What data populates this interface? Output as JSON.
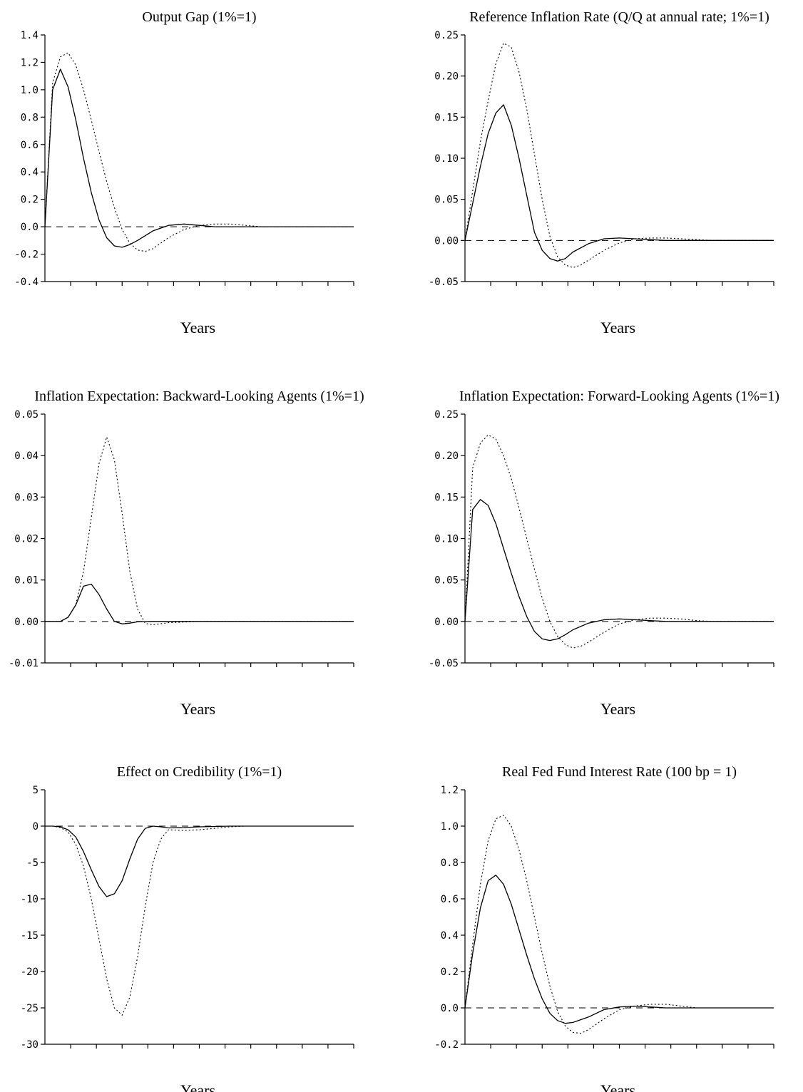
{
  "chart_data": [
    {
      "type": "line",
      "title": "Output Gap (1%=1)",
      "xlabel": "Years",
      "ylabel": "",
      "ylim": [
        -0.4,
        1.4
      ],
      "yticks": [
        "-0.4",
        "-0.2",
        "0.0",
        "0.2",
        "0.4",
        "0.6",
        "0.8",
        "1.0",
        "1.2",
        "1.4"
      ],
      "xlim": [
        0,
        40
      ],
      "x_ticks_count": 12,
      "zero_line": true,
      "series": [
        {
          "style": "solid",
          "x": [
            0,
            1,
            2,
            3,
            4,
            5,
            6,
            7,
            8,
            9,
            10,
            11,
            12,
            14,
            16,
            18,
            20,
            22,
            24,
            26,
            28,
            30,
            32,
            34,
            36,
            38,
            40
          ],
          "y": [
            0.0,
            1.0,
            1.15,
            1.02,
            0.78,
            0.5,
            0.25,
            0.05,
            -0.08,
            -0.14,
            -0.15,
            -0.13,
            -0.1,
            -0.03,
            0.01,
            0.02,
            0.01,
            0.0,
            0.0,
            0.0,
            0.0,
            0.0,
            0.0,
            0.0,
            0.0,
            0.0,
            0.0
          ]
        },
        {
          "style": "dotted",
          "x": [
            0,
            1,
            2,
            3,
            4,
            5,
            6,
            7,
            8,
            9,
            10,
            11,
            12,
            13,
            14,
            15,
            16,
            18,
            20,
            22,
            24,
            26,
            28,
            30,
            32,
            34,
            36,
            38,
            40
          ],
          "y": [
            0.0,
            1.05,
            1.24,
            1.27,
            1.18,
            1.0,
            0.78,
            0.55,
            0.33,
            0.14,
            -0.02,
            -0.12,
            -0.17,
            -0.18,
            -0.16,
            -0.12,
            -0.08,
            -0.02,
            0.01,
            0.02,
            0.02,
            0.01,
            0.0,
            0.0,
            0.0,
            0.0,
            0.0,
            0.0,
            0.0
          ]
        }
      ]
    },
    {
      "type": "line",
      "title": "Reference Inflation Rate (Q/Q at annual rate; 1%=1)",
      "xlabel": "Years",
      "ylabel": "",
      "ylim": [
        -0.05,
        0.25
      ],
      "yticks": [
        "-0.05",
        "0.00",
        "0.05",
        "0.10",
        "0.15",
        "0.20",
        "0.25"
      ],
      "xlim": [
        0,
        40
      ],
      "x_ticks_count": 12,
      "zero_line": true,
      "series": [
        {
          "style": "solid",
          "x": [
            0,
            1,
            2,
            3,
            4,
            5,
            6,
            7,
            8,
            9,
            10,
            11,
            12,
            13,
            14,
            16,
            18,
            20,
            22,
            24,
            26,
            28,
            30,
            32,
            34,
            36,
            38,
            40
          ],
          "y": [
            0.0,
            0.045,
            0.09,
            0.13,
            0.155,
            0.165,
            0.14,
            0.1,
            0.055,
            0.01,
            -0.012,
            -0.022,
            -0.025,
            -0.022,
            -0.014,
            -0.004,
            0.002,
            0.003,
            0.002,
            0.001,
            0.0,
            0.0,
            0.0,
            0.0,
            0.0,
            0.0,
            0.0,
            0.0
          ]
        },
        {
          "style": "dotted",
          "x": [
            0,
            1,
            2,
            3,
            4,
            5,
            6,
            7,
            8,
            9,
            10,
            11,
            12,
            13,
            14,
            15,
            16,
            18,
            20,
            22,
            24,
            26,
            28,
            30,
            32,
            34,
            36,
            38,
            40
          ],
          "y": [
            0.0,
            0.06,
            0.12,
            0.17,
            0.215,
            0.24,
            0.235,
            0.205,
            0.16,
            0.105,
            0.05,
            0.005,
            -0.02,
            -0.03,
            -0.033,
            -0.03,
            -0.024,
            -0.012,
            -0.003,
            0.002,
            0.003,
            0.003,
            0.002,
            0.001,
            0.0,
            0.0,
            0.0,
            0.0,
            0.0
          ]
        }
      ]
    },
    {
      "type": "line",
      "title": "Inflation Expectation: Backward-Looking Agents (1%=1)",
      "xlabel": "Years",
      "ylabel": "",
      "ylim": [
        -0.01,
        0.05
      ],
      "yticks": [
        "-0.01",
        "0.00",
        "0.01",
        "0.02",
        "0.03",
        "0.04",
        "0.05"
      ],
      "xlim": [
        0,
        40
      ],
      "x_ticks_count": 12,
      "zero_line": true,
      "series": [
        {
          "style": "solid",
          "x": [
            0,
            1,
            2,
            3,
            4,
            5,
            6,
            7,
            8,
            9,
            10,
            11,
            12,
            14,
            16,
            20,
            30,
            40
          ],
          "y": [
            0.0,
            0.0,
            0.0,
            0.001,
            0.004,
            0.0085,
            0.009,
            0.0065,
            0.003,
            0.0,
            -0.0006,
            -0.0004,
            -0.0001,
            0.0,
            0.0,
            0.0,
            0.0,
            0.0
          ]
        },
        {
          "style": "dotted",
          "x": [
            0,
            1,
            2,
            3,
            4,
            5,
            6,
            7,
            8,
            9,
            10,
            11,
            12,
            13,
            14,
            16,
            20,
            30,
            40
          ],
          "y": [
            0.0,
            0.0,
            0.0,
            0.001,
            0.004,
            0.012,
            0.025,
            0.038,
            0.0445,
            0.039,
            0.026,
            0.012,
            0.003,
            -0.0005,
            -0.0008,
            -0.0003,
            0.0,
            0.0,
            0.0
          ]
        }
      ]
    },
    {
      "type": "line",
      "title": "Inflation Expectation: Forward-Looking Agents (1%=1)",
      "xlabel": "Years",
      "ylabel": "",
      "ylim": [
        -0.05,
        0.25
      ],
      "yticks": [
        "-0.05",
        "0.00",
        "0.05",
        "0.10",
        "0.15",
        "0.20",
        "0.25"
      ],
      "xlim": [
        0,
        40
      ],
      "x_ticks_count": 12,
      "zero_line": true,
      "series": [
        {
          "style": "solid",
          "x": [
            0,
            1,
            2,
            3,
            4,
            5,
            6,
            7,
            8,
            9,
            10,
            11,
            12,
            13,
            14,
            16,
            18,
            20,
            22,
            24,
            26,
            28,
            30,
            32,
            34,
            36,
            38,
            40
          ],
          "y": [
            0.0,
            0.135,
            0.147,
            0.14,
            0.118,
            0.088,
            0.058,
            0.03,
            0.006,
            -0.012,
            -0.021,
            -0.023,
            -0.021,
            -0.016,
            -0.01,
            -0.002,
            0.002,
            0.003,
            0.002,
            0.001,
            0.0,
            0.0,
            0.0,
            0.0,
            0.0,
            0.0,
            0.0,
            0.0
          ]
        },
        {
          "style": "dotted",
          "x": [
            0,
            1,
            2,
            3,
            4,
            5,
            6,
            7,
            8,
            9,
            10,
            11,
            12,
            13,
            14,
            15,
            16,
            18,
            20,
            22,
            24,
            26,
            28,
            30,
            32,
            34,
            36,
            38,
            40
          ],
          "y": [
            0.0,
            0.185,
            0.215,
            0.225,
            0.22,
            0.2,
            0.172,
            0.137,
            0.1,
            0.063,
            0.028,
            0.0,
            -0.018,
            -0.028,
            -0.032,
            -0.03,
            -0.025,
            -0.013,
            -0.003,
            0.002,
            0.004,
            0.004,
            0.003,
            0.001,
            0.0,
            0.0,
            0.0,
            0.0,
            0.0
          ]
        }
      ]
    },
    {
      "type": "line",
      "title": "Effect on Credibility (1%=1)",
      "xlabel": "Years",
      "ylabel": "",
      "ylim": [
        -30,
        5
      ],
      "yticks": [
        "-30",
        "-25",
        "-20",
        "-15",
        "-10",
        "-5",
        "0",
        "5"
      ],
      "xlim": [
        0,
        40
      ],
      "x_ticks_count": 12,
      "zero_line": true,
      "series": [
        {
          "style": "solid",
          "x": [
            0,
            1,
            2,
            3,
            4,
            5,
            6,
            7,
            8,
            9,
            10,
            11,
            12,
            13,
            14,
            15,
            16,
            18,
            20,
            22,
            24,
            26,
            28,
            30,
            32,
            34,
            36,
            38,
            40
          ],
          "y": [
            0.0,
            0.0,
            -0.1,
            -0.5,
            -1.5,
            -3.5,
            -6.0,
            -8.3,
            -9.7,
            -9.3,
            -7.5,
            -4.5,
            -1.8,
            -0.3,
            0.0,
            -0.1,
            -0.25,
            -0.2,
            -0.1,
            -0.05,
            0.0,
            0.0,
            0.0,
            0.0,
            0.0,
            0.0,
            0.0,
            0.0,
            0.0
          ]
        },
        {
          "style": "dotted",
          "x": [
            0,
            1,
            2,
            3,
            4,
            5,
            6,
            7,
            8,
            9,
            10,
            11,
            12,
            13,
            14,
            15,
            16,
            18,
            20,
            22,
            24,
            26,
            28,
            30,
            32,
            34,
            36,
            38,
            40
          ],
          "y": [
            0.0,
            0.0,
            -0.2,
            -0.8,
            -2.5,
            -5.5,
            -10.0,
            -15.5,
            -21.0,
            -25.0,
            -26.0,
            -23.5,
            -18.0,
            -11.0,
            -5.0,
            -1.8,
            -0.5,
            -0.6,
            -0.5,
            -0.3,
            -0.1,
            0.0,
            0.0,
            0.0,
            0.0,
            0.0,
            0.0,
            0.0,
            0.0
          ]
        }
      ]
    },
    {
      "type": "line",
      "title": "Real Fed Fund Interest Rate (100 bp = 1)",
      "xlabel": "Years",
      "ylabel": "",
      "ylim": [
        -0.2,
        1.2
      ],
      "yticks": [
        "-0.2",
        "0.0",
        "0.2",
        "0.4",
        "0.6",
        "0.8",
        "1.0",
        "1.2"
      ],
      "xlim": [
        0,
        40
      ],
      "x_ticks_count": 12,
      "zero_line": true,
      "series": [
        {
          "style": "solid",
          "x": [
            0,
            1,
            2,
            3,
            4,
            5,
            6,
            7,
            8,
            9,
            10,
            11,
            12,
            13,
            14,
            16,
            18,
            20,
            22,
            24,
            26,
            28,
            30,
            32,
            34,
            36,
            38,
            40
          ],
          "y": [
            0.0,
            0.3,
            0.55,
            0.7,
            0.73,
            0.68,
            0.57,
            0.43,
            0.29,
            0.16,
            0.05,
            -0.03,
            -0.07,
            -0.085,
            -0.08,
            -0.05,
            -0.01,
            0.005,
            0.01,
            0.005,
            0.0,
            0.0,
            0.0,
            0.0,
            0.0,
            0.0,
            0.0,
            0.0
          ]
        },
        {
          "style": "dotted",
          "x": [
            0,
            1,
            2,
            3,
            4,
            5,
            6,
            7,
            8,
            9,
            10,
            11,
            12,
            13,
            14,
            15,
            16,
            17,
            18,
            20,
            22,
            24,
            26,
            28,
            30,
            32,
            34,
            36,
            38,
            40
          ],
          "y": [
            0.0,
            0.35,
            0.68,
            0.92,
            1.04,
            1.06,
            1.0,
            0.87,
            0.7,
            0.5,
            0.3,
            0.12,
            -0.02,
            -0.1,
            -0.135,
            -0.14,
            -0.12,
            -0.09,
            -0.06,
            -0.01,
            0.01,
            0.02,
            0.02,
            0.01,
            0.0,
            0.0,
            0.0,
            0.0,
            0.0,
            0.0
          ]
        }
      ]
    }
  ]
}
